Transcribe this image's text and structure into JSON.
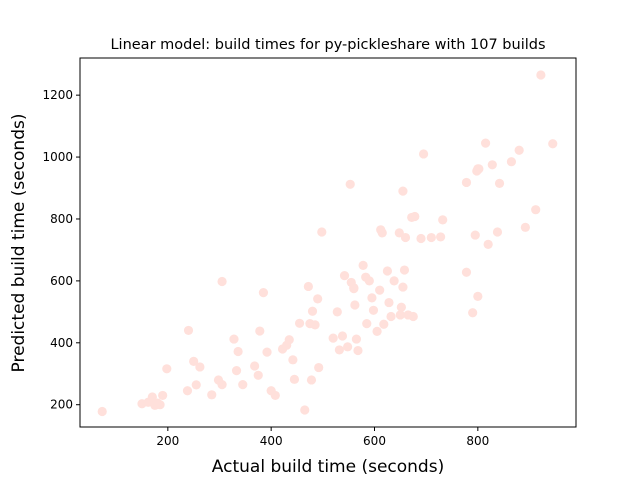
{
  "chart_data": {
    "type": "scatter",
    "title": "Linear model: build times for py-pickleshare with 107 builds",
    "xlabel": "Actual build time (seconds)",
    "ylabel": "Predicted build time (seconds)",
    "xlim": [
      30,
      990
    ],
    "ylim": [
      128,
      1320
    ],
    "xticks": [
      200,
      400,
      600,
      800
    ],
    "yticks": [
      200,
      400,
      600,
      800,
      1000,
      1200
    ],
    "grid": false,
    "point_color": "#ffe0db",
    "series": [
      {
        "points": [
          [
            73,
            178
          ],
          [
            150,
            203
          ],
          [
            162,
            208
          ],
          [
            170,
            225
          ],
          [
            175,
            198
          ],
          [
            180,
            205
          ],
          [
            185,
            200
          ],
          [
            190,
            230
          ],
          [
            198,
            316
          ],
          [
            240,
            440
          ],
          [
            238,
            245
          ],
          [
            250,
            340
          ],
          [
            255,
            264
          ],
          [
            262,
            322
          ],
          [
            285,
            232
          ],
          [
            298,
            280
          ],
          [
            305,
            598
          ],
          [
            305,
            265
          ],
          [
            328,
            412
          ],
          [
            333,
            310
          ],
          [
            336,
            372
          ],
          [
            345,
            265
          ],
          [
            368,
            325
          ],
          [
            375,
            295
          ],
          [
            378,
            438
          ],
          [
            385,
            562
          ],
          [
            392,
            370
          ],
          [
            400,
            245
          ],
          [
            408,
            230
          ],
          [
            422,
            380
          ],
          [
            430,
            392
          ],
          [
            435,
            410
          ],
          [
            442,
            345
          ],
          [
            445,
            282
          ],
          [
            455,
            463
          ],
          [
            465,
            183
          ],
          [
            472,
            582
          ],
          [
            475,
            462
          ],
          [
            478,
            280
          ],
          [
            480,
            502
          ],
          [
            485,
            458
          ],
          [
            490,
            542
          ],
          [
            492,
            320
          ],
          [
            498,
            758
          ],
          [
            520,
            415
          ],
          [
            528,
            500
          ],
          [
            532,
            377
          ],
          [
            538,
            422
          ],
          [
            542,
            617
          ],
          [
            548,
            387
          ],
          [
            553,
            912
          ],
          [
            555,
            595
          ],
          [
            560,
            578
          ],
          [
            562,
            522
          ],
          [
            565,
            412
          ],
          [
            568,
            375
          ],
          [
            578,
            650
          ],
          [
            583,
            612
          ],
          [
            585,
            462
          ],
          [
            590,
            600
          ],
          [
            595,
            545
          ],
          [
            598,
            505
          ],
          [
            605,
            437
          ],
          [
            610,
            570
          ],
          [
            612,
            765
          ],
          [
            615,
            755
          ],
          [
            618,
            460
          ],
          [
            625,
            632
          ],
          [
            628,
            530
          ],
          [
            632,
            485
          ],
          [
            638,
            600
          ],
          [
            648,
            755
          ],
          [
            650,
            490
          ],
          [
            652,
            515
          ],
          [
            655,
            890
          ],
          [
            655,
            580
          ],
          [
            658,
            635
          ],
          [
            660,
            740
          ],
          [
            665,
            490
          ],
          [
            672,
            805
          ],
          [
            675,
            485
          ],
          [
            678,
            808
          ],
          [
            690,
            737
          ],
          [
            695,
            1010
          ],
          [
            710,
            740
          ],
          [
            728,
            742
          ],
          [
            732,
            797
          ],
          [
            778,
            918
          ],
          [
            778,
            628
          ],
          [
            790,
            497
          ],
          [
            795,
            748
          ],
          [
            798,
            955
          ],
          [
            800,
            550
          ],
          [
            802,
            962
          ],
          [
            815,
            1045
          ],
          [
            820,
            718
          ],
          [
            828,
            975
          ],
          [
            838,
            758
          ],
          [
            842,
            915
          ],
          [
            865,
            985
          ],
          [
            880,
            1022
          ],
          [
            892,
            773
          ],
          [
            912,
            830
          ],
          [
            922,
            1265
          ],
          [
            945,
            1043
          ],
          [
            800,
            962
          ],
          [
            560,
            575
          ]
        ]
      }
    ]
  }
}
